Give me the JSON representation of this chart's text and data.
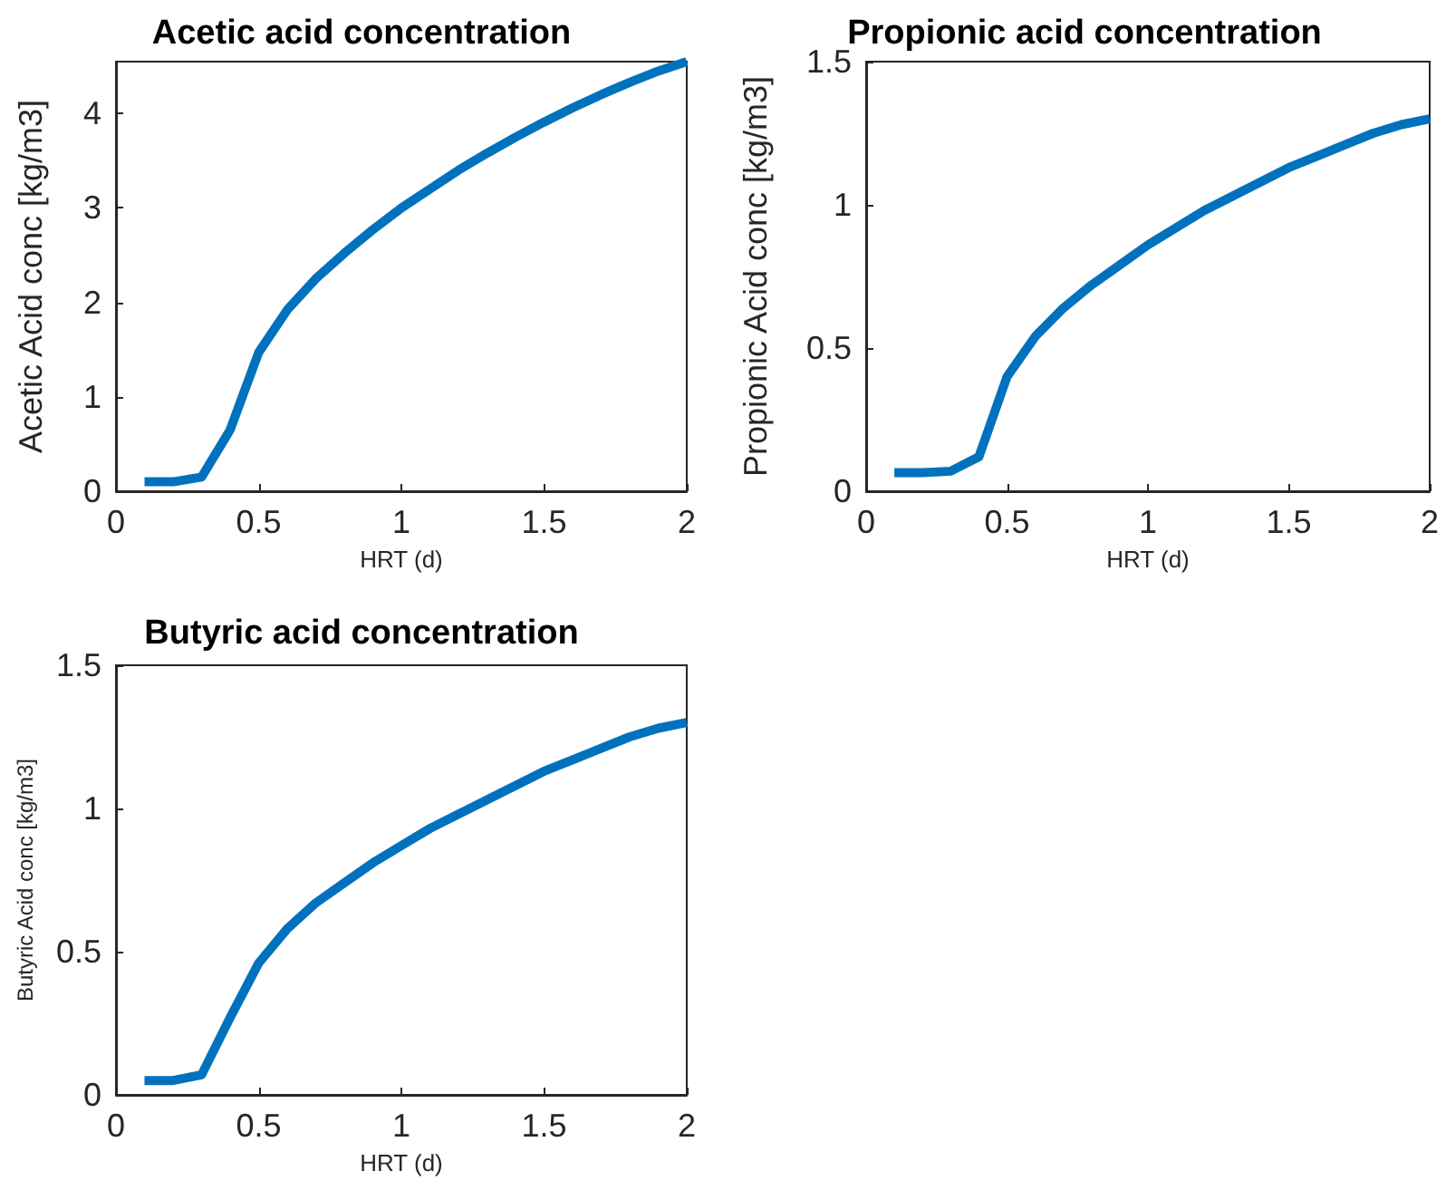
{
  "chart_data": [
    {
      "type": "line",
      "title": "Acetic acid concentration",
      "xlabel": "HRT (d)",
      "ylabel": "Acetic Acid conc [kg/m3]",
      "x": [
        0.1,
        0.2,
        0.3,
        0.4,
        0.5,
        0.6,
        0.7,
        0.8,
        0.9,
        1.0,
        1.1,
        1.2,
        1.3,
        1.4,
        1.5,
        1.6,
        1.7,
        1.8,
        1.9,
        2.0
      ],
      "series": [
        {
          "color": "#0072bd",
          "values": [
            0.1,
            0.1,
            0.15,
            0.65,
            1.47,
            1.92,
            2.25,
            2.52,
            2.77,
            3.0,
            3.2,
            3.4,
            3.58,
            3.75,
            3.91,
            4.06,
            4.2,
            4.33,
            4.45,
            4.55
          ]
        }
      ],
      "xlim": [
        0,
        2
      ],
      "xticks": [
        0,
        0.5,
        1,
        1.5,
        2
      ],
      "ylim": [
        0,
        4.55
      ],
      "yticks": [
        0,
        1,
        2,
        3,
        4
      ],
      "grid": false,
      "marker": "none",
      "line_style": "solid"
    },
    {
      "type": "line",
      "title": "Propionic acid concentration",
      "xlabel": "HRT (d)",
      "ylabel": "Propionic Acid conc [kg/m3]",
      "x": [
        0.1,
        0.2,
        0.3,
        0.4,
        0.5,
        0.6,
        0.7,
        0.8,
        0.9,
        1.0,
        1.1,
        1.2,
        1.3,
        1.4,
        1.5,
        1.6,
        1.7,
        1.8,
        1.9,
        2.0
      ],
      "series": [
        {
          "color": "#0072bd",
          "values": [
            0.065,
            0.065,
            0.07,
            0.12,
            0.4,
            0.54,
            0.64,
            0.72,
            0.79,
            0.86,
            0.92,
            0.98,
            1.03,
            1.08,
            1.13,
            1.17,
            1.21,
            1.25,
            1.28,
            1.3
          ]
        }
      ],
      "xlim": [
        0,
        2
      ],
      "xticks": [
        0,
        0.5,
        1,
        1.5,
        2
      ],
      "ylim": [
        0,
        1.5
      ],
      "yticks": [
        0,
        0.5,
        1,
        1.5
      ],
      "grid": false,
      "marker": "none",
      "line_style": "solid"
    },
    {
      "type": "line",
      "title": "Butyric acid concentration",
      "xlabel": "HRT (d)",
      "ylabel": "Butyric Acid conc [kg/m3]",
      "x": [
        0.1,
        0.2,
        0.3,
        0.4,
        0.5,
        0.6,
        0.7,
        0.8,
        0.9,
        1.0,
        1.1,
        1.2,
        1.3,
        1.4,
        1.5,
        1.6,
        1.7,
        1.8,
        1.9,
        2.0
      ],
      "series": [
        {
          "color": "#0072bd",
          "values": [
            0.05,
            0.05,
            0.07,
            0.27,
            0.46,
            0.58,
            0.67,
            0.74,
            0.81,
            0.87,
            0.93,
            0.98,
            1.03,
            1.08,
            1.13,
            1.17,
            1.21,
            1.25,
            1.28,
            1.3
          ]
        }
      ],
      "xlim": [
        0,
        2
      ],
      "xticks": [
        0,
        0.5,
        1,
        1.5,
        2
      ],
      "ylim": [
        0,
        1.5
      ],
      "yticks": [
        0,
        0.5,
        1,
        1.5
      ],
      "grid": false,
      "marker": "none",
      "line_style": "solid"
    }
  ]
}
